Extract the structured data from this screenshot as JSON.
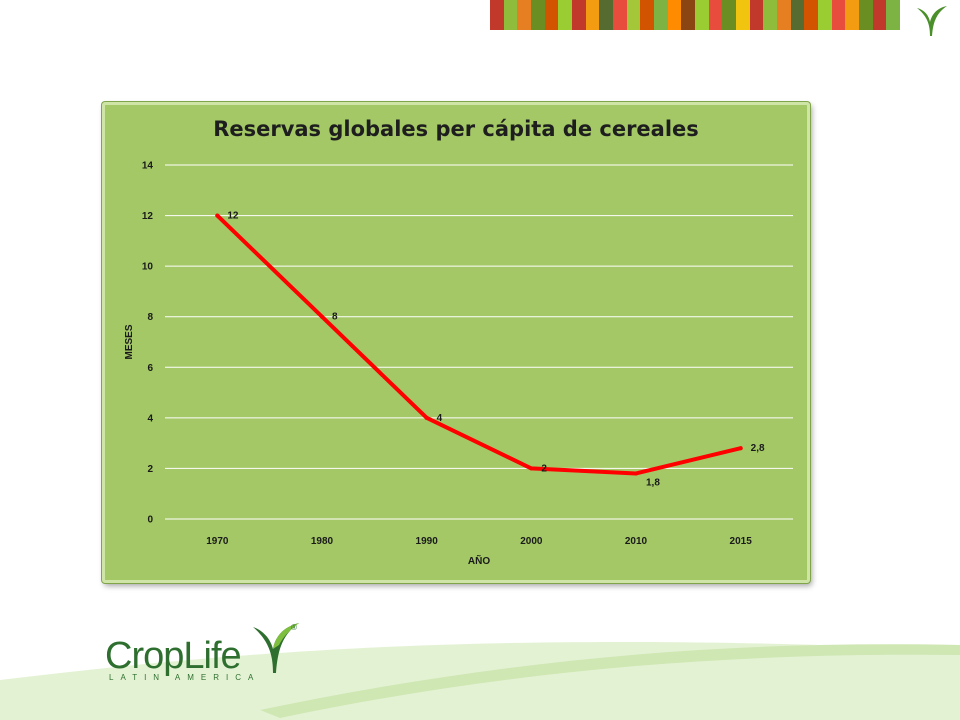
{
  "brand": {
    "name": "CropLife",
    "subtitle": "LATIN AMERICA",
    "registered_mark": "®",
    "colors": {
      "primary_green": "#2e6f2f",
      "light_green": "#7fbf3f",
      "chart_bg": "#a3c865",
      "line": "#ff0000"
    },
    "stripes": [
      "#c0392b",
      "#8fbc3a",
      "#e67e22",
      "#6b8e23",
      "#d35400",
      "#9acd32",
      "#c0392b",
      "#f39c12",
      "#556b2f",
      "#e74c3c",
      "#a4c639",
      "#d35400",
      "#7cb342",
      "#ff8c00",
      "#8b4513",
      "#9acd32",
      "#e74c3c",
      "#6b8e23",
      "#f1c40f",
      "#c0392b",
      "#8fbc3a",
      "#e67e22",
      "#556b2f",
      "#d35400",
      "#9acd32",
      "#e74c3c",
      "#f39c12",
      "#6b8e23",
      "#c0392b",
      "#7cb342"
    ]
  },
  "chart_data": {
    "type": "line",
    "title": "Reservas globales per cápita de cereales",
    "xlabel": "AÑO",
    "ylabel": "MESES",
    "categories": [
      "1970",
      "1980",
      "1990",
      "2000",
      "2010",
      "2015"
    ],
    "series": [
      {
        "values": [
          12,
          8,
          4,
          2,
          1.8,
          2.8
        ],
        "labels": [
          "12",
          "8",
          "4",
          "2",
          "1,8",
          "2,8"
        ],
        "color": "#ff0000"
      }
    ],
    "ylim": [
      0,
      14
    ],
    "yticks": [
      "0",
      "2",
      "4",
      "6",
      "8",
      "10",
      "12",
      "14"
    ],
    "grid": true,
    "legend": "none"
  }
}
